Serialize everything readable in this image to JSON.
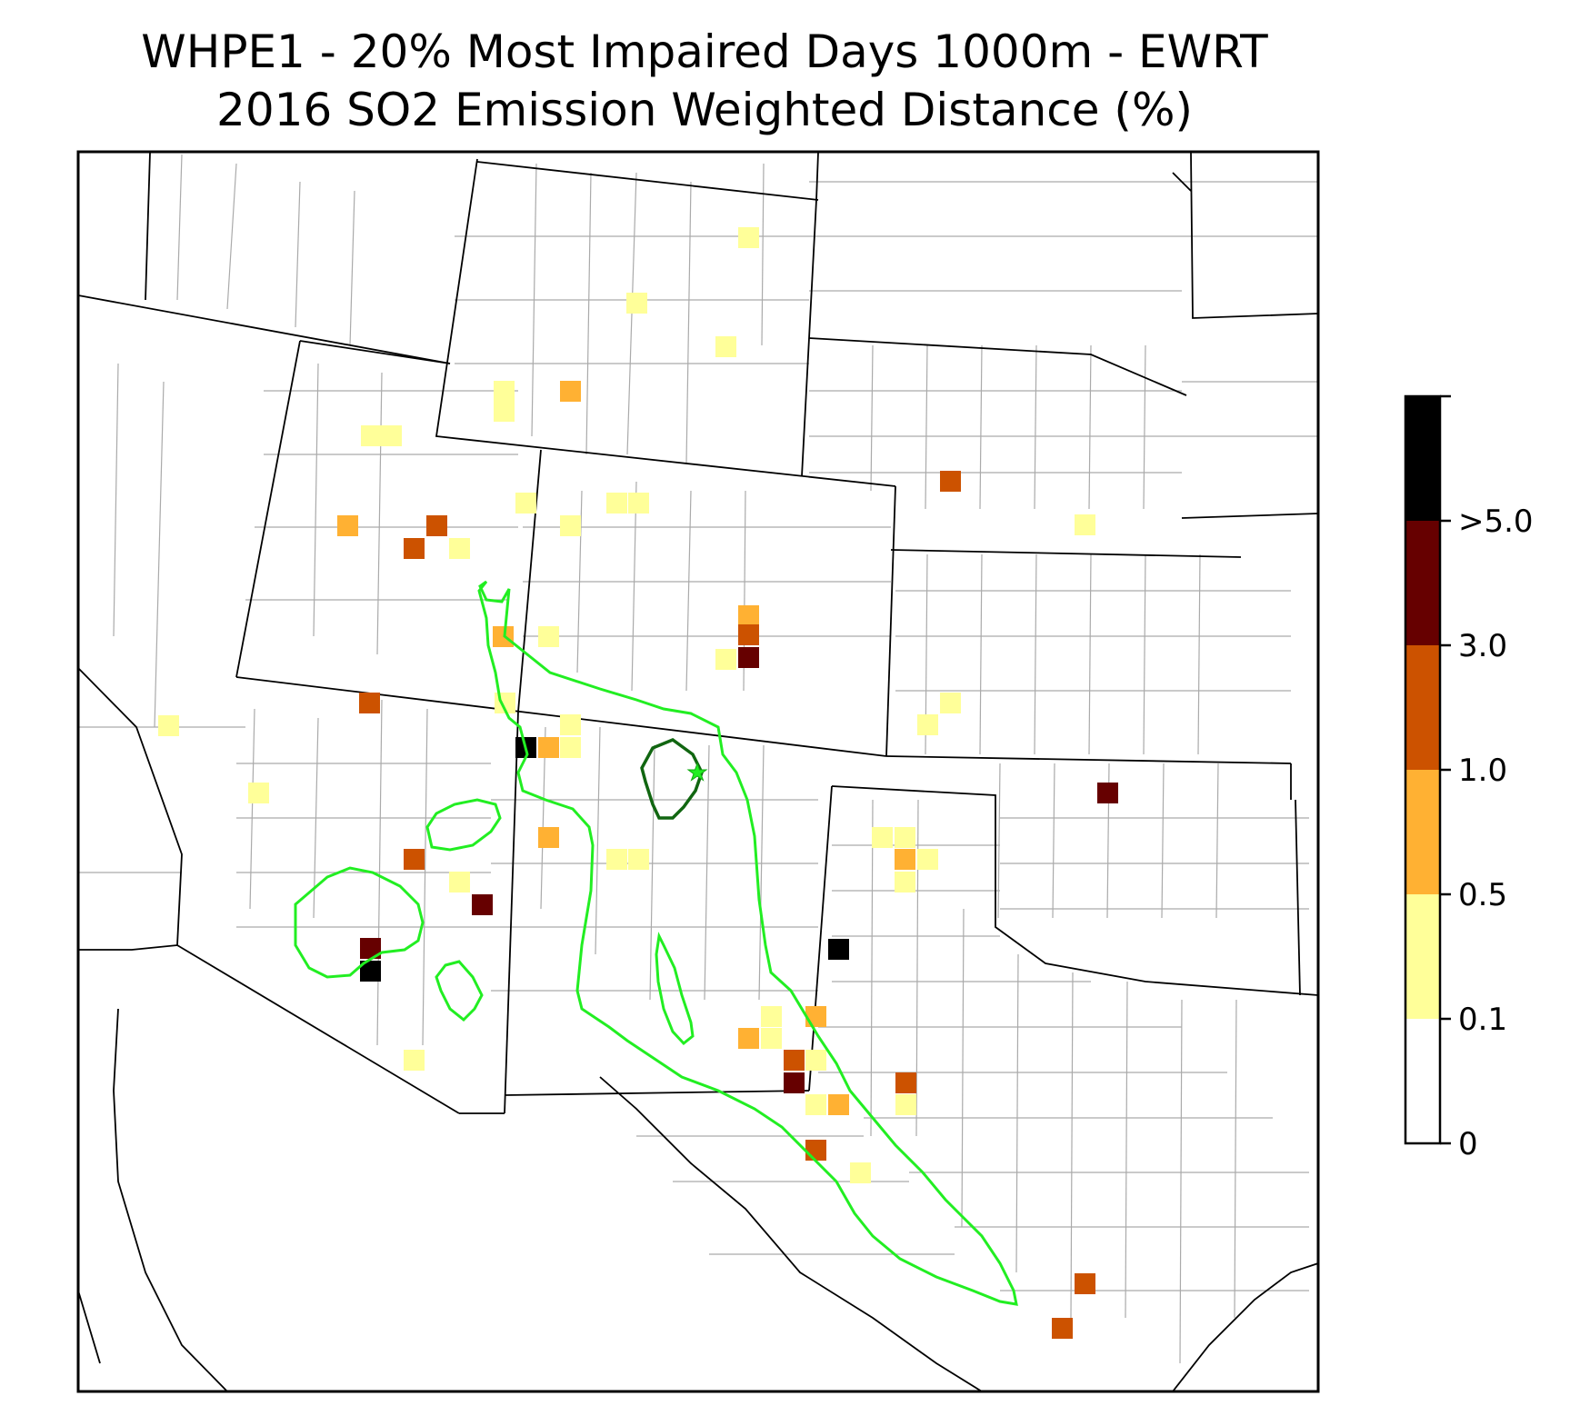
{
  "title": {
    "line1": "WHPE1 - 20% Most Impaired Days 1000m - EWRT",
    "line2": "2016 SO2 Emission Weighted Distance (%)"
  },
  "colorbar": {
    "bins": [
      {
        "label": "0",
        "color": "#ffffff"
      },
      {
        "label": "0.1",
        "color": "#ffff99"
      },
      {
        "label": "0.5",
        "color": "#ffb133"
      },
      {
        "label": "1.0",
        "color": "#cc5200"
      },
      {
        "label": "3.0",
        "color": "#660000"
      },
      {
        "label": ">5.0",
        "color": "#000000"
      }
    ]
  },
  "legend_colors": {
    "contour_outer": "#22ee22",
    "contour_inner": "#116611",
    "site_marker": "#22ee22",
    "state_border": "#000000",
    "county_border": "#aaaaaa"
  },
  "site": {
    "icon": "star-icon"
  }
}
